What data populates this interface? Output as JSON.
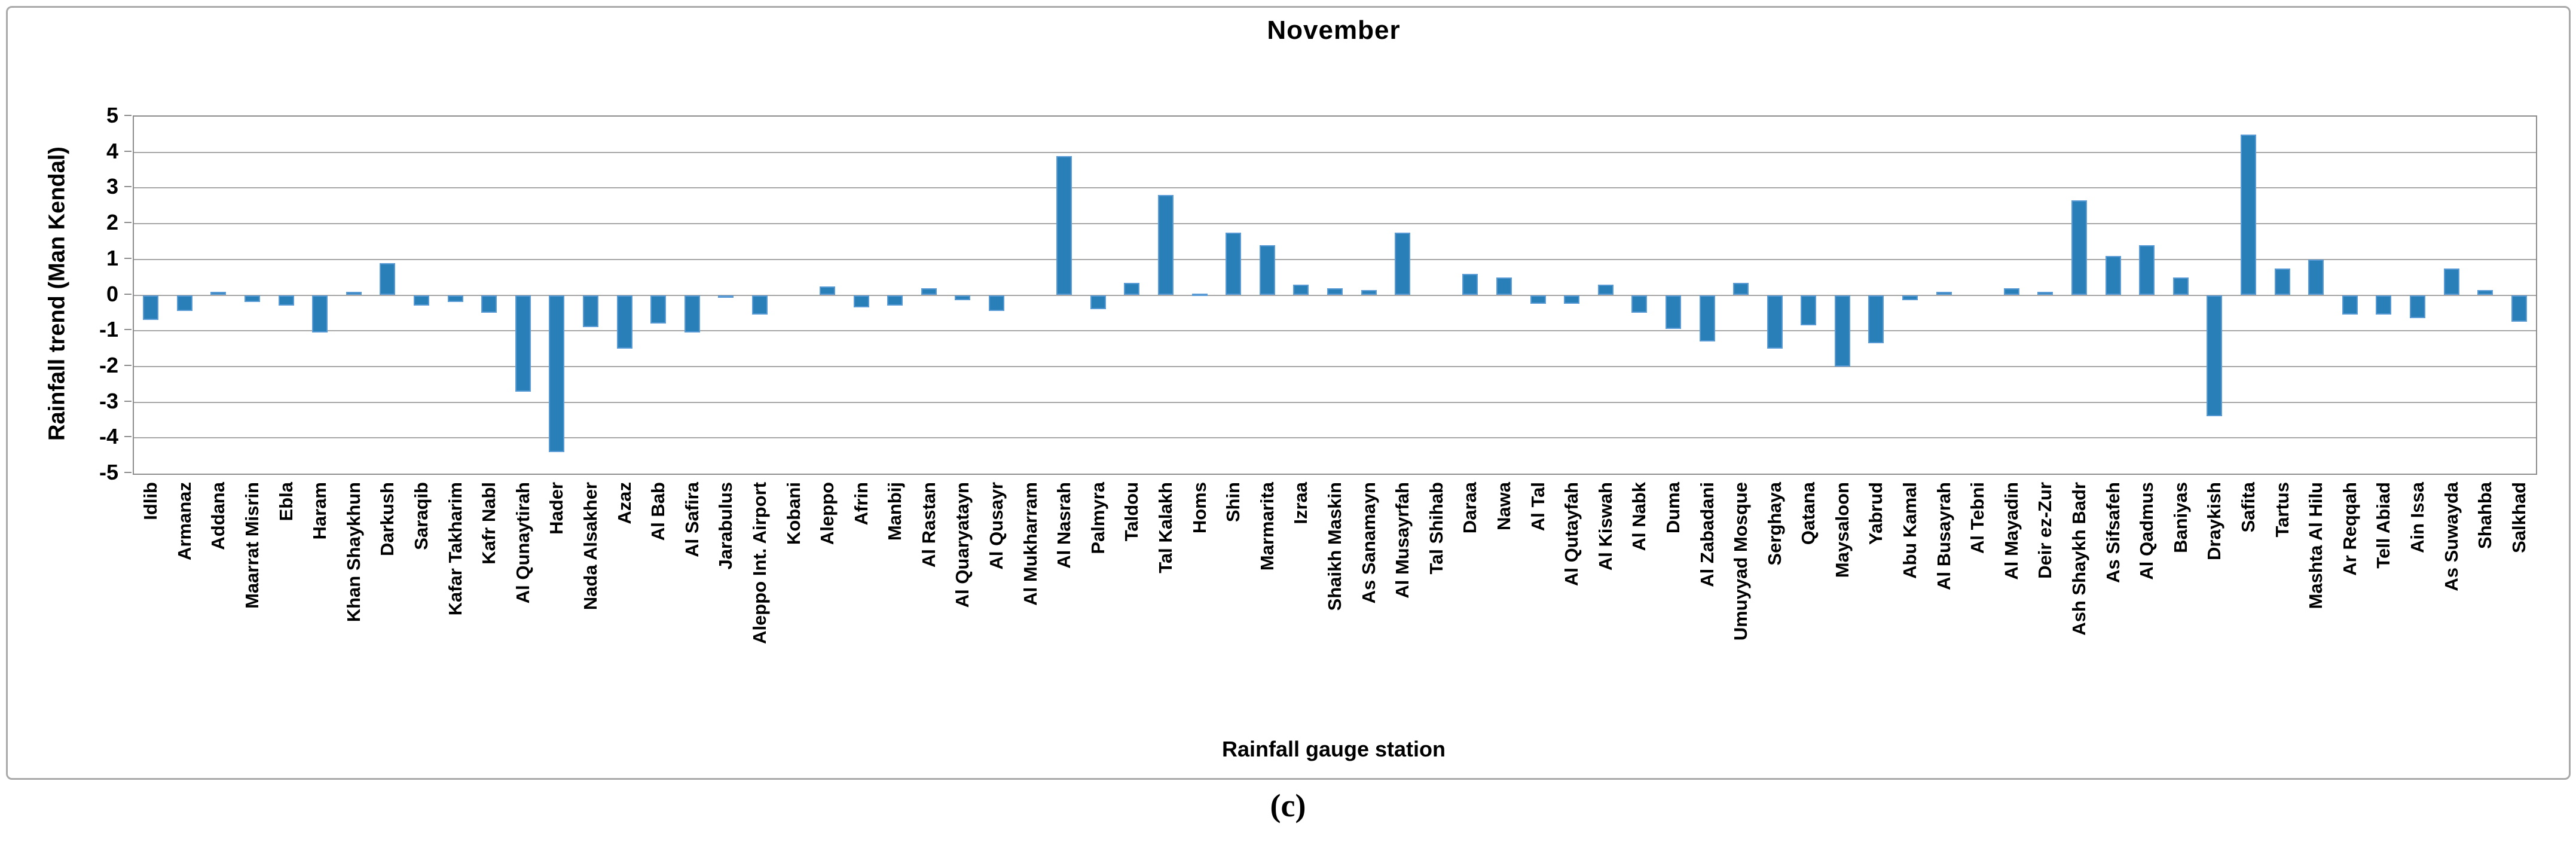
{
  "figure": {
    "title": "November",
    "y_axis_title": "Rainfall trend  (Man Kendal)",
    "x_axis_title": "Rainfall gauge station",
    "caption": "(c)"
  },
  "colors": {
    "bar_fill": "#2980b9",
    "bar_edge": "#5b9bd5",
    "gridline": "#a6a6a6",
    "axis_line": "#8c8c8c",
    "text": "#000000"
  },
  "chart_data": {
    "type": "bar",
    "title": "November",
    "xlabel": "Rainfall gauge station",
    "ylabel": "Rainfall trend  (Man Kendal)",
    "ylim": [
      -5,
      5
    ],
    "ytick_step": 1,
    "grid": true,
    "legend": "none",
    "categories": [
      "Idlib",
      "Armanaz",
      "Addana",
      "Maarrat Misrin",
      "Ebla",
      "Haram",
      "Khan Shaykhun",
      "Darkush",
      "Saraqib",
      "Kafar Takharim",
      "Kafr Nabl",
      "Al Qunaytirah",
      "Hader",
      "Nada Alsakher",
      "Azaz",
      "Al Bab",
      "Al Safira",
      "Jarabulus",
      "Aleppo Int. Airport",
      "Kobani",
      "Aleppo",
      "Afrin",
      "Manbij",
      "Al Rastan",
      "Al Quaryatayn",
      "Al Qusayr",
      "Al Mukharram",
      "Al Nasrah",
      "Palmyra",
      "Taldou",
      "Tal Kalakh",
      "Homs",
      "Shin",
      "Marmarita",
      "Izraa",
      "Shaikh Maskin",
      "As Sanamayn",
      "Al Musayrfah",
      "Tal Shihab",
      "Daraa",
      "Nawa",
      "Al Tal",
      "Al Qutayfah",
      "Al Kiswah",
      "Al Nabk",
      "Duma",
      "Al Zabadani",
      "Umuyyad Mosque",
      "Serghaya",
      "Qatana",
      "Maysaloon",
      "Yabrud",
      "Abu Kamal",
      "Al Busayrah",
      "Al Tebni",
      "Al Mayadin",
      "Deir ez-Zur",
      "Ash Shaykh Badr",
      "As Sifsafeh",
      "Al Qadmus",
      "Baniyas",
      "Draykish",
      "Safita",
      "Tartus",
      "Mashta Al Hilu",
      "Ar Reqqah",
      "Tell Abiad",
      "Ain Issa",
      "As Suwayda",
      "Shahba",
      "Salkhad"
    ],
    "values": [
      -0.7,
      -0.45,
      0.1,
      -0.2,
      -0.3,
      -1.05,
      0.1,
      0.9,
      -0.3,
      -0.2,
      -0.5,
      -2.7,
      -4.4,
      -0.9,
      -1.5,
      -0.8,
      -1.05,
      -0.05,
      -0.55,
      0,
      0.25,
      -0.35,
      -0.3,
      0.2,
      -0.15,
      -0.45,
      0,
      3.9,
      -0.4,
      0.35,
      2.8,
      0.05,
      1.75,
      1.4,
      0.3,
      0.2,
      0.15,
      1.75,
      0,
      0.6,
      0.5,
      -0.25,
      -0.25,
      0.3,
      -0.5,
      -0.95,
      -1.3,
      0.35,
      -1.5,
      -0.85,
      -2.0,
      -1.35,
      -0.15,
      0.1,
      0,
      0.2,
      0.1,
      2.65,
      1.1,
      1.4,
      0.5,
      -3.4,
      4.5,
      0.75,
      1.0,
      -0.55,
      -0.55,
      -0.65,
      0.75,
      0.15,
      -0.75
    ]
  }
}
